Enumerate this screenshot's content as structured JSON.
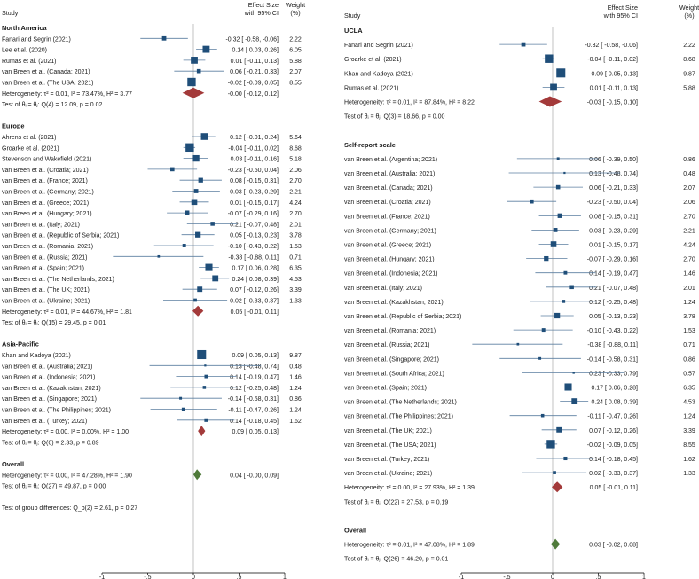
{
  "colors": {
    "marker": "#1f4e79",
    "ci": "#5c7fa0",
    "subtotal": "#a33a3a",
    "overall": "#4f7a3a",
    "axis": "#000000"
  },
  "chart_data": [
    {
      "type": "forest",
      "header": {
        "study": "Study",
        "effect_line1": "Effect Size",
        "effect_line2": "with 95% CI",
        "weight_line1": "Weight",
        "weight_line2": "(%)"
      },
      "xlim": [
        -1,
        1
      ],
      "xticks": [
        "-1",
        "-.5",
        "0",
        ".5",
        "1"
      ],
      "rows": [
        {
          "kind": "group",
          "label": "North America"
        },
        {
          "kind": "study",
          "label": "Fanari and Segrin (2021)",
          "es": -0.32,
          "lo": -0.58,
          "hi": -0.06,
          "w": 2.22,
          "text": "-0.32 [ -0.58, -0.06]",
          "wtext": "2.22"
        },
        {
          "kind": "study",
          "label": "Lee et al. (2020)",
          "es": 0.14,
          "lo": 0.03,
          "hi": 0.26,
          "w": 6.05,
          "text": "0.14 [  0.03,  0.26]",
          "wtext": "6.05"
        },
        {
          "kind": "study",
          "label": "Rumas et al. (2021)",
          "es": 0.01,
          "lo": -0.11,
          "hi": 0.13,
          "w": 5.88,
          "text": "0.01 [ -0.11,  0.13]",
          "wtext": "5.88"
        },
        {
          "kind": "study",
          "label": "van Breen et al. (Canada; 2021)",
          "es": 0.06,
          "lo": -0.21,
          "hi": 0.33,
          "w": 2.07,
          "text": "0.06 [ -0.21,  0.33]",
          "wtext": "2.07"
        },
        {
          "kind": "study",
          "label": "van Breen et al. (The USA; 2021)",
          "es": -0.02,
          "lo": -0.09,
          "hi": 0.05,
          "w": 8.55,
          "text": "-0.02 [ -0.09,  0.05]",
          "wtext": "8.55"
        },
        {
          "kind": "subtotal",
          "label": "Heterogeneity: τ² = 0.01, I² = 73.47%, H² = 3.77",
          "es": 0.0,
          "lo": -0.12,
          "hi": 0.12,
          "text": "-0.00 [ -0.12,  0.12]"
        },
        {
          "kind": "test",
          "label": "Test of θᵢ = θⱼ: Q(4) = 12.09, p = 0.02"
        },
        {
          "kind": "blank"
        },
        {
          "kind": "group",
          "label": "Europe"
        },
        {
          "kind": "study",
          "label": "Ahrens et al. (2021)",
          "es": 0.12,
          "lo": -0.01,
          "hi": 0.24,
          "w": 5.64,
          "text": "0.12 [ -0.01,  0.24]",
          "wtext": "5.64"
        },
        {
          "kind": "study",
          "label": "Groarke et al. (2021)",
          "es": -0.04,
          "lo": -0.11,
          "hi": 0.02,
          "w": 8.68,
          "text": "-0.04 [ -0.11,  0.02]",
          "wtext": "8.68"
        },
        {
          "kind": "study",
          "label": "Stevenson and Wakefield (2021)",
          "es": 0.03,
          "lo": -0.11,
          "hi": 0.16,
          "w": 5.18,
          "text": "0.03 [ -0.11,  0.16]",
          "wtext": "5.18"
        },
        {
          "kind": "study",
          "label": "van Breen et al. (Croatia; 2021)",
          "es": -0.23,
          "lo": -0.5,
          "hi": 0.04,
          "w": 2.06,
          "text": "-0.23 [ -0.50,  0.04]",
          "wtext": "2.06"
        },
        {
          "kind": "study",
          "label": "van Breen et al. (France; 2021)",
          "es": 0.08,
          "lo": -0.15,
          "hi": 0.31,
          "w": 2.7,
          "text": "0.08 [ -0.15,  0.31]",
          "wtext": "2.70"
        },
        {
          "kind": "study",
          "label": "van Breen et al. (Germany; 2021)",
          "es": 0.03,
          "lo": -0.23,
          "hi": 0.29,
          "w": 2.21,
          "text": "0.03 [ -0.23,  0.29]",
          "wtext": "2.21"
        },
        {
          "kind": "study",
          "label": "van Breen et al. (Greece; 2021)",
          "es": 0.01,
          "lo": -0.15,
          "hi": 0.17,
          "w": 4.24,
          "text": "0.01 [ -0.15,  0.17]",
          "wtext": "4.24"
        },
        {
          "kind": "study",
          "label": "van Breen et al. (Hungary; 2021)",
          "es": -0.07,
          "lo": -0.29,
          "hi": 0.16,
          "w": 2.7,
          "text": "-0.07 [ -0.29,  0.16]",
          "wtext": "2.70"
        },
        {
          "kind": "study",
          "label": "van Breen et al. (Italy; 2021)",
          "es": 0.21,
          "lo": -0.07,
          "hi": 0.48,
          "w": 2.01,
          "text": "0.21 [ -0.07,  0.48]",
          "wtext": "2.01"
        },
        {
          "kind": "study",
          "label": "van Breen et al. (Republic of Serbia; 2021)",
          "es": 0.05,
          "lo": -0.13,
          "hi": 0.23,
          "w": 3.78,
          "text": "0.05 [ -0.13,  0.23]",
          "wtext": "3.78"
        },
        {
          "kind": "study",
          "label": "van Breen et al. (Romania; 2021)",
          "es": -0.1,
          "lo": -0.43,
          "hi": 0.22,
          "w": 1.53,
          "text": "-0.10 [ -0.43,  0.22]",
          "wtext": "1.53"
        },
        {
          "kind": "study",
          "label": "van Breen et al. (Russia; 2021)",
          "es": -0.38,
          "lo": -0.88,
          "hi": 0.11,
          "w": 0.71,
          "text": "-0.38 [ -0.88,  0.11]",
          "wtext": "0.71"
        },
        {
          "kind": "study",
          "label": "van Breen et al. (Spain; 2021)",
          "es": 0.17,
          "lo": 0.06,
          "hi": 0.28,
          "w": 6.35,
          "text": "0.17 [  0.06,  0.28]",
          "wtext": "6.35"
        },
        {
          "kind": "study",
          "label": "van Breen et al. (The Netherlands; 2021)",
          "es": 0.24,
          "lo": 0.08,
          "hi": 0.39,
          "w": 4.53,
          "text": "0.24 [  0.08,  0.39]",
          "wtext": "4.53"
        },
        {
          "kind": "study",
          "label": "van Breen et al. (The UK; 2021)",
          "es": 0.07,
          "lo": -0.12,
          "hi": 0.26,
          "w": 3.39,
          "text": "0.07 [ -0.12,  0.26]",
          "wtext": "3.39"
        },
        {
          "kind": "study",
          "label": "van Breen et al. (Ukraine; 2021)",
          "es": 0.02,
          "lo": -0.33,
          "hi": 0.37,
          "w": 1.33,
          "text": "0.02 [ -0.33,  0.37]",
          "wtext": "1.33"
        },
        {
          "kind": "subtotal",
          "label": "Heterogeneity: τ² = 0.01, I² = 44.67%, H² = 1.81",
          "es": 0.05,
          "lo": -0.01,
          "hi": 0.11,
          "text": "0.05 [ -0.01,  0.11]"
        },
        {
          "kind": "test",
          "label": "Test of θᵢ = θⱼ: Q(15) = 29.45, p = 0.01"
        },
        {
          "kind": "blank"
        },
        {
          "kind": "group",
          "label": "Asia-Pacific"
        },
        {
          "kind": "study",
          "label": "Khan and Kadoya (2021)",
          "es": 0.09,
          "lo": 0.05,
          "hi": 0.13,
          "w": 9.87,
          "text": "0.09 [  0.05,  0.13]",
          "wtext": "9.87"
        },
        {
          "kind": "study",
          "label": "van Breen et al. (Australia; 2021)",
          "es": 0.13,
          "lo": -0.48,
          "hi": 0.74,
          "w": 0.48,
          "text": "0.13 [ -0.48,  0.74]",
          "wtext": "0.48"
        },
        {
          "kind": "study",
          "label": "van Breen et al. (Indonesia; 2021)",
          "es": 0.14,
          "lo": -0.19,
          "hi": 0.47,
          "w": 1.46,
          "text": "0.14 [ -0.19,  0.47]",
          "wtext": "1.46"
        },
        {
          "kind": "study",
          "label": "van Breen et al. (Kazakhstan; 2021)",
          "es": 0.12,
          "lo": -0.25,
          "hi": 0.48,
          "w": 1.24,
          "text": "0.12 [ -0.25,  0.48]",
          "wtext": "1.24"
        },
        {
          "kind": "study",
          "label": "van Breen et al. (Singapore; 2021)",
          "es": -0.14,
          "lo": -0.58,
          "hi": 0.31,
          "w": 0.86,
          "text": "-0.14 [ -0.58,  0.31]",
          "wtext": "0.86"
        },
        {
          "kind": "study",
          "label": "van Breen et al. (The Philippines; 2021)",
          "es": -0.11,
          "lo": -0.47,
          "hi": 0.26,
          "w": 1.24,
          "text": "-0.11 [ -0.47,  0.26]",
          "wtext": "1.24"
        },
        {
          "kind": "study",
          "label": "van Breen et al. (Turkey; 2021)",
          "es": 0.14,
          "lo": -0.18,
          "hi": 0.45,
          "w": 1.62,
          "text": "0.14 [ -0.18,  0.45]",
          "wtext": "1.62"
        },
        {
          "kind": "subtotal",
          "label": "Heterogeneity: τ² = 0.00, I² = 0.00%, H² = 1.00",
          "es": 0.09,
          "lo": 0.05,
          "hi": 0.13,
          "text": "0.09 [  0.05,  0.13]"
        },
        {
          "kind": "test",
          "label": "Test of θᵢ = θⱼ: Q(6) = 2.33, p = 0.89"
        },
        {
          "kind": "blank"
        },
        {
          "kind": "group",
          "label": "Overall"
        },
        {
          "kind": "overall",
          "label": "Heterogeneity: τ² = 0.00, I² = 47.28%, H² = 1.90",
          "es": 0.04,
          "lo": -0.0,
          "hi": 0.09,
          "text": "0.04 [ -0.00,  0.09]"
        },
        {
          "kind": "test",
          "label": "Test of θᵢ = θⱼ: Q(27) = 49.87, p = 0.00"
        },
        {
          "kind": "blank"
        },
        {
          "kind": "test",
          "label": "Test of group differences: Q_b(2) = 2.61, p = 0.27"
        }
      ]
    },
    {
      "type": "forest",
      "header": {
        "study": "Study",
        "effect_line1": "Effect Size",
        "effect_line2": "with 95% CI",
        "weight_line1": "Weight",
        "weight_line2": "(%)"
      },
      "xlim": [
        -1,
        1
      ],
      "xticks": [
        "-1",
        "-.5",
        "0",
        ".5",
        "1"
      ],
      "rows": [
        {
          "kind": "group",
          "label": "UCLA"
        },
        {
          "kind": "study",
          "label": "Fanari and Segrin (2021)",
          "es": -0.32,
          "lo": -0.58,
          "hi": -0.06,
          "w": 2.22,
          "text": "-0.32 [ -0.58, -0.06]",
          "wtext": "2.22"
        },
        {
          "kind": "study",
          "label": "Groarke et al. (2021)",
          "es": -0.04,
          "lo": -0.11,
          "hi": 0.02,
          "w": 8.68,
          "text": "-0.04 [ -0.11,  0.02]",
          "wtext": "8.68"
        },
        {
          "kind": "study",
          "label": "Khan and Kadoya (2021)",
          "es": 0.09,
          "lo": 0.05,
          "hi": 0.13,
          "w": 9.87,
          "text": "0.09 [  0.05,  0.13]",
          "wtext": "9.87"
        },
        {
          "kind": "study",
          "label": "Rumas et al. (2021)",
          "es": 0.01,
          "lo": -0.11,
          "hi": 0.13,
          "w": 5.88,
          "text": "0.01 [ -0.11,  0.13]",
          "wtext": "5.88"
        },
        {
          "kind": "subtotal",
          "label": "Heterogeneity: τ² = 0.01, I² = 87.84%, H² = 8.22",
          "es": -0.03,
          "lo": -0.15,
          "hi": 0.1,
          "text": "-0.03 [ -0.15,  0.10]"
        },
        {
          "kind": "test",
          "label": "Test of θᵢ = θⱼ: Q(3) = 18.66, p = 0.00"
        },
        {
          "kind": "blank"
        },
        {
          "kind": "group",
          "label": "Self-report scale"
        },
        {
          "kind": "study",
          "label": "van Breen et al. (Argentina; 2021)",
          "es": 0.06,
          "lo": -0.39,
          "hi": 0.5,
          "w": 0.86,
          "text": "0.06 [ -0.39,  0.50]",
          "wtext": "0.86"
        },
        {
          "kind": "study",
          "label": "van Breen et al. (Australia; 2021)",
          "es": 0.13,
          "lo": -0.48,
          "hi": 0.74,
          "w": 0.48,
          "text": "0.13 [ -0.48,  0.74]",
          "wtext": "0.48"
        },
        {
          "kind": "study",
          "label": "van Breen et al. (Canada; 2021)",
          "es": 0.06,
          "lo": -0.21,
          "hi": 0.33,
          "w": 2.07,
          "text": "0.06 [ -0.21,  0.33]",
          "wtext": "2.07"
        },
        {
          "kind": "study",
          "label": "van Breen et al. (Croatia; 2021)",
          "es": -0.23,
          "lo": -0.5,
          "hi": 0.04,
          "w": 2.06,
          "text": "-0.23 [ -0.50,  0.04]",
          "wtext": "2.06"
        },
        {
          "kind": "study",
          "label": "van Breen et al. (France; 2021)",
          "es": 0.08,
          "lo": -0.15,
          "hi": 0.31,
          "w": 2.7,
          "text": "0.08 [ -0.15,  0.31]",
          "wtext": "2.70"
        },
        {
          "kind": "study",
          "label": "van Breen et al. (Germany; 2021)",
          "es": 0.03,
          "lo": -0.23,
          "hi": 0.29,
          "w": 2.21,
          "text": "0.03 [ -0.23,  0.29]",
          "wtext": "2.21"
        },
        {
          "kind": "study",
          "label": "van Breen et al. (Greece; 2021)",
          "es": 0.01,
          "lo": -0.15,
          "hi": 0.17,
          "w": 4.24,
          "text": "0.01 [ -0.15,  0.17]",
          "wtext": "4.24"
        },
        {
          "kind": "study",
          "label": "van Breen et al. (Hungary; 2021)",
          "es": -0.07,
          "lo": -0.29,
          "hi": 0.16,
          "w": 2.7,
          "text": "-0.07 [ -0.29,  0.16]",
          "wtext": "2.70"
        },
        {
          "kind": "study",
          "label": "van Breen et al. (Indonesia; 2021)",
          "es": 0.14,
          "lo": -0.19,
          "hi": 0.47,
          "w": 1.46,
          "text": "0.14 [ -0.19,  0.47]",
          "wtext": "1.46"
        },
        {
          "kind": "study",
          "label": "van Breen et al. (Italy; 2021)",
          "es": 0.21,
          "lo": -0.07,
          "hi": 0.48,
          "w": 2.01,
          "text": "0.21 [ -0.07,  0.48]",
          "wtext": "2.01"
        },
        {
          "kind": "study",
          "label": "van Breen et al. (Kazakhstan; 2021)",
          "es": 0.12,
          "lo": -0.25,
          "hi": 0.48,
          "w": 1.24,
          "text": "0.12 [ -0.25,  0.48]",
          "wtext": "1.24"
        },
        {
          "kind": "study",
          "label": "van Breen et al. (Republic of Serbia; 2021)",
          "es": 0.05,
          "lo": -0.13,
          "hi": 0.23,
          "w": 3.78,
          "text": "0.05 [ -0.13,  0.23]",
          "wtext": "3.78"
        },
        {
          "kind": "study",
          "label": "van Breen et al. (Romania; 2021)",
          "es": -0.1,
          "lo": -0.43,
          "hi": 0.22,
          "w": 1.53,
          "text": "-0.10 [ -0.43,  0.22]",
          "wtext": "1.53"
        },
        {
          "kind": "study",
          "label": "van Breen et al. (Russia; 2021)",
          "es": -0.38,
          "lo": -0.88,
          "hi": 0.11,
          "w": 0.71,
          "text": "-0.38 [ -0.88,  0.11]",
          "wtext": "0.71"
        },
        {
          "kind": "study",
          "label": "van Breen et al. (Singapore; 2021)",
          "es": -0.14,
          "lo": -0.58,
          "hi": 0.31,
          "w": 0.86,
          "text": "-0.14 [ -0.58,  0.31]",
          "wtext": "0.86"
        },
        {
          "kind": "study",
          "label": "van Breen et al. (South Africa; 2021)",
          "es": 0.23,
          "lo": -0.33,
          "hi": 0.79,
          "w": 0.57,
          "text": "0.23 [ -0.33,  0.79]",
          "wtext": "0.57"
        },
        {
          "kind": "study",
          "label": "van Breen et al. (Spain; 2021)",
          "es": 0.17,
          "lo": 0.06,
          "hi": 0.28,
          "w": 6.35,
          "text": "0.17 [  0.06,  0.28]",
          "wtext": "6.35"
        },
        {
          "kind": "study",
          "label": "van Breen et al. (The Netherlands; 2021)",
          "es": 0.24,
          "lo": 0.08,
          "hi": 0.39,
          "w": 4.53,
          "text": "0.24 [  0.08,  0.39]",
          "wtext": "4.53"
        },
        {
          "kind": "study",
          "label": "van Breen et al. (The Philippines; 2021)",
          "es": -0.11,
          "lo": -0.47,
          "hi": 0.26,
          "w": 1.24,
          "text": "-0.11 [ -0.47,  0.26]",
          "wtext": "1.24"
        },
        {
          "kind": "study",
          "label": "van Breen et al. (The UK; 2021)",
          "es": 0.07,
          "lo": -0.12,
          "hi": 0.26,
          "w": 3.39,
          "text": "0.07 [ -0.12,  0.26]",
          "wtext": "3.39"
        },
        {
          "kind": "study",
          "label": "van Breen et al. (The USA; 2021)",
          "es": -0.02,
          "lo": -0.09,
          "hi": 0.05,
          "w": 8.55,
          "text": "-0.02 [ -0.09,  0.05]",
          "wtext": "8.55"
        },
        {
          "kind": "study",
          "label": "van Breen et al. (Turkey; 2021)",
          "es": 0.14,
          "lo": -0.18,
          "hi": 0.45,
          "w": 1.62,
          "text": "0.14 [ -0.18,  0.45]",
          "wtext": "1.62"
        },
        {
          "kind": "study",
          "label": "van Breen et al. (Ukraine; 2021)",
          "es": 0.02,
          "lo": -0.33,
          "hi": 0.37,
          "w": 1.33,
          "text": "0.02 [ -0.33,  0.37]",
          "wtext": "1.33"
        },
        {
          "kind": "subtotal",
          "label": "Heterogeneity: τ² = 0.00, I² = 27.93%, H² = 1.39",
          "es": 0.05,
          "lo": -0.01,
          "hi": 0.11,
          "text": "0.05 [ -0.01,  0.11]"
        },
        {
          "kind": "test",
          "label": "Test of θᵢ = θⱼ: Q(22) = 27.53, p = 0.19"
        },
        {
          "kind": "blank"
        },
        {
          "kind": "group",
          "label": "Overall"
        },
        {
          "kind": "overall",
          "label": "Heterogeneity: τ² = 0.01, I² = 47.08%, H² = 1.89",
          "es": 0.03,
          "lo": -0.02,
          "hi": 0.08,
          "text": "0.03 [ -0.02,  0.08]"
        },
        {
          "kind": "test",
          "label": "Test of θᵢ = θⱼ: Q(26) = 46.20, p = 0.01"
        },
        {
          "kind": "blank"
        },
        {
          "kind": "test",
          "label": "Test of group differences: Q_b(1) = 1.15, p = 0.28"
        }
      ]
    }
  ]
}
